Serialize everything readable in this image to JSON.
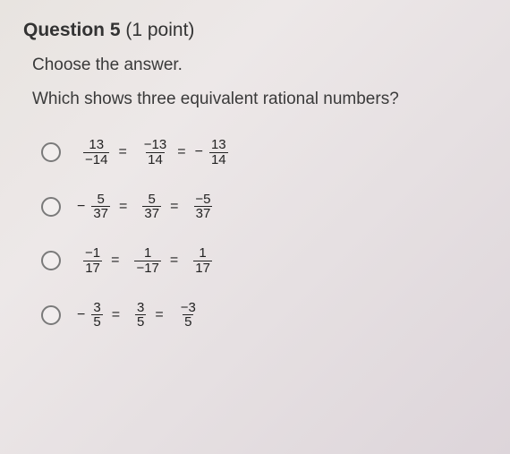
{
  "header": {
    "question_label": "Question 5",
    "points": "(1 point)"
  },
  "instruction": "Choose the answer.",
  "prompt": "Which shows three equivalent rational numbers?",
  "options": [
    {
      "terms": [
        {
          "prefix": "",
          "num": "13",
          "den": "−14"
        },
        {
          "prefix": "",
          "num": "−13",
          "den": "14"
        },
        {
          "prefix": "−",
          "num": "13",
          "den": "14"
        }
      ]
    },
    {
      "terms": [
        {
          "prefix": "−",
          "num": "5",
          "den": "37"
        },
        {
          "prefix": "",
          "num": "5",
          "den": "37"
        },
        {
          "prefix": "",
          "num": "−5",
          "den": "37"
        }
      ]
    },
    {
      "terms": [
        {
          "prefix": "",
          "num": "−1",
          "den": "17"
        },
        {
          "prefix": "",
          "num": "1",
          "den": "−17"
        },
        {
          "prefix": "",
          "num": "1",
          "den": "17"
        }
      ]
    },
    {
      "terms": [
        {
          "prefix": "−",
          "num": "3",
          "den": "5"
        },
        {
          "prefix": "",
          "num": "3",
          "den": "5"
        },
        {
          "prefix": "",
          "num": "−3",
          "den": "5"
        }
      ]
    }
  ],
  "eq": "="
}
